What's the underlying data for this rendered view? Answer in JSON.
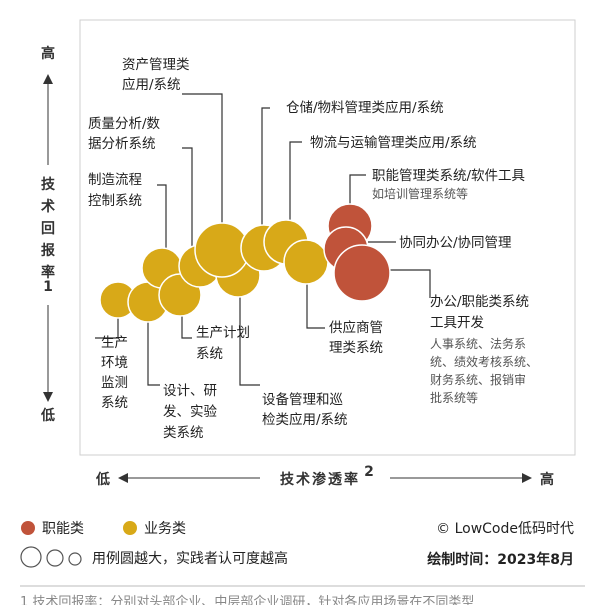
{
  "axes": {
    "y_high": "高",
    "y_low": "低",
    "y_title": "技术回报率",
    "y_title_chars": [
      "技",
      "术",
      "回",
      "报",
      "率"
    ],
    "y_footnote_mark": "1",
    "x_low": "低",
    "x_high": "高",
    "x_title": "技术渗透率",
    "x_footnote_mark": "2"
  },
  "colors": {
    "functional": "#c0533a",
    "business": "#d8a918",
    "leader": "#333333",
    "frame": "#cfcfcf"
  },
  "labels": {
    "asset": [
      "资产管理类",
      "应用/系统"
    ],
    "warehouse": "仓储/物料管理类应用/系统",
    "quality": [
      "质量分析/数",
      "据分析系统"
    ],
    "logistics": "物流与运输管理类应用/系统",
    "manufacturing": [
      "制造流程",
      "控制系统"
    ],
    "hr_tools": "职能管理类系统/软件工具",
    "hr_tools_sub": "如培训管理系统等",
    "oa": "协同办公/协同管理",
    "office_tools": [
      "办公/职能类系统",
      "工具开发"
    ],
    "office_tools_sub": [
      "人事系统、法务系",
      "统、绩效考核系统、",
      "财务系统、报销审",
      "批系统等"
    ],
    "production_plan": [
      "生产计划",
      "系统"
    ],
    "supplier": [
      "供应商管",
      "理类系统"
    ],
    "env_monitor": [
      "生产",
      "环境",
      "监测",
      "系统"
    ],
    "design": [
      "设计、研",
      "发、实验",
      "类系统"
    ],
    "equipment": [
      "设备管理和巡",
      "检类应用/系统"
    ]
  },
  "legend": {
    "functional": "职能类",
    "business": "业务类",
    "size_note": "用例圆越大，实践者认可度越高"
  },
  "source": "© LowCode低码时代",
  "date_label": "绘制时间：2023年8月",
  "footnote": "1    技术回报率：分别对头部企业、中层部企业调研，针对各应用场景在不同类型"
}
